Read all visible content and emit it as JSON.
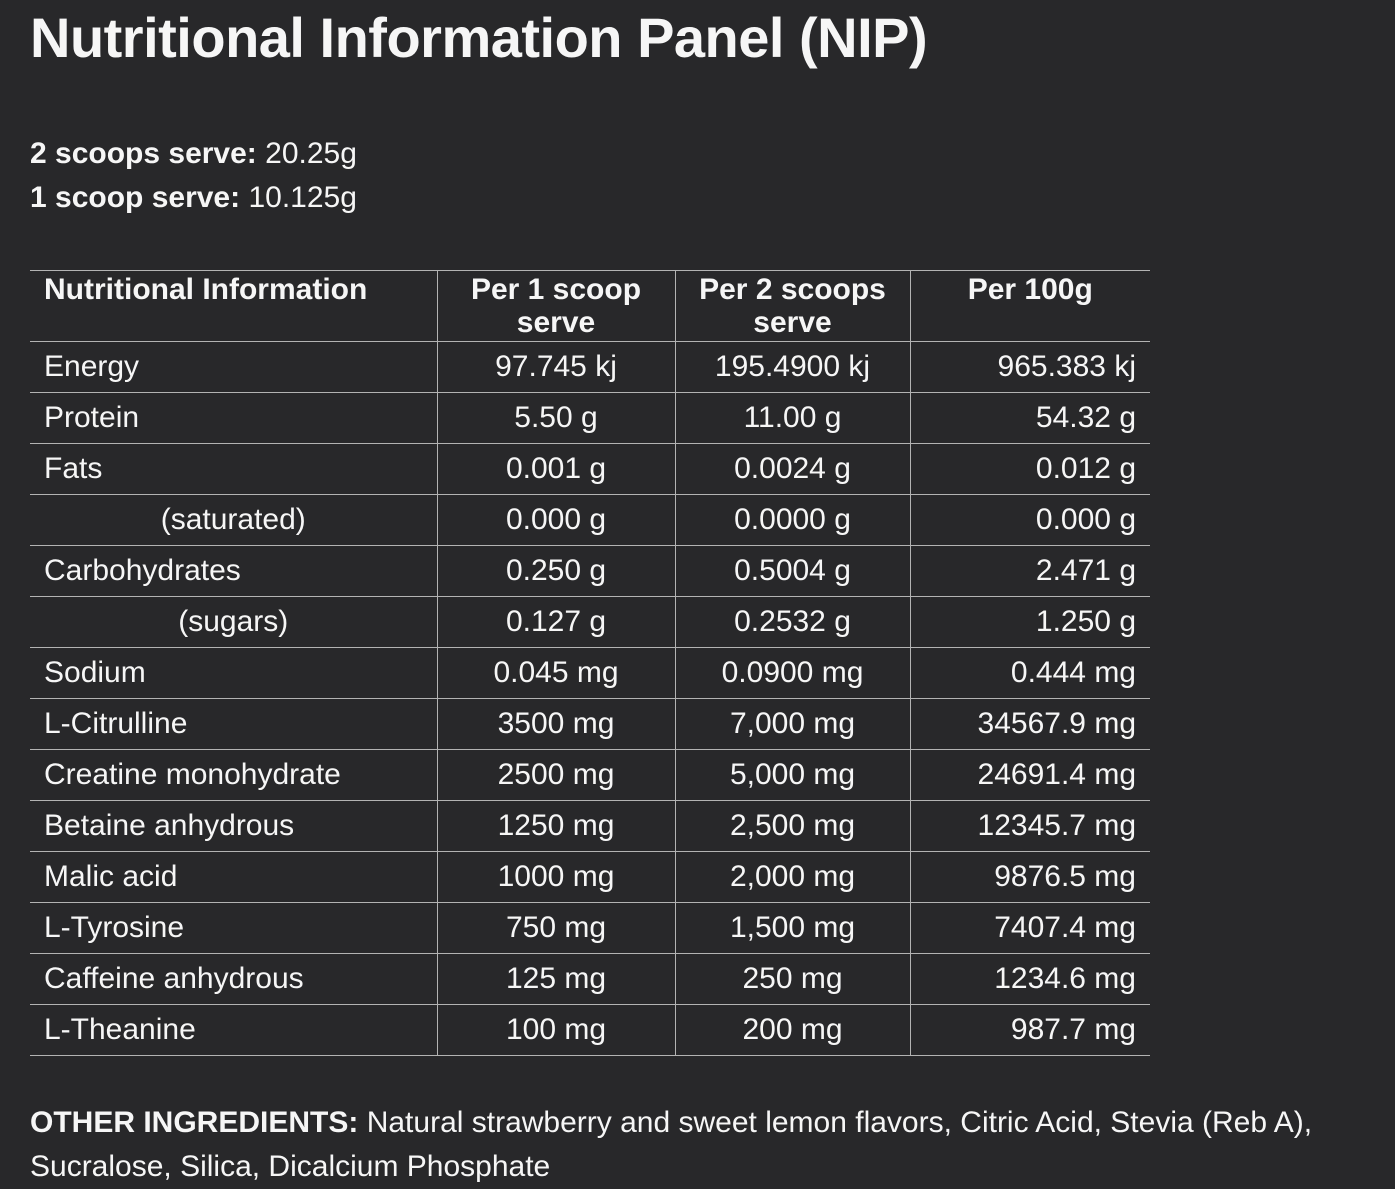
{
  "theme": {
    "background_color": "#28282a",
    "text_color": "#f6f6f6",
    "table_border_color": "#b3b3b3"
  },
  "title": "Nutritional Information Panel (NIP)",
  "serving": [
    {
      "label": "2 scoops serve:",
      "value": "20.25g"
    },
    {
      "label": "1 scoop serve:",
      "value": "10.125g"
    }
  ],
  "table": {
    "headers": [
      "Nutritional Information",
      "Per 1 scoop serve",
      "Per 2 scoops serve",
      "Per 100g"
    ],
    "rows": [
      {
        "name": "Energy",
        "indent": false,
        "per1": "97.745 kj",
        "per2": "195.4900 kj",
        "per100": "965.383 kj"
      },
      {
        "name": "Protein",
        "indent": false,
        "per1": "5.50 g",
        "per2": "11.00 g",
        "per100": "54.32 g"
      },
      {
        "name": "Fats",
        "indent": false,
        "per1": "0.001 g",
        "per2": "0.0024 g",
        "per100": "0.012 g"
      },
      {
        "name": "(saturated)",
        "indent": true,
        "per1": "0.000 g",
        "per2": "0.0000 g",
        "per100": "0.000 g"
      },
      {
        "name": "Carbohydrates",
        "indent": false,
        "per1": "0.250 g",
        "per2": "0.5004 g",
        "per100": "2.471 g"
      },
      {
        "name": "(sugars)",
        "indent": true,
        "per1": "0.127 g",
        "per2": "0.2532 g",
        "per100": "1.250 g"
      },
      {
        "name": "Sodium",
        "indent": false,
        "per1": "0.045 mg",
        "per2": "0.0900 mg",
        "per100": "0.444 mg"
      },
      {
        "name": "L-Citrulline",
        "indent": false,
        "per1": "3500 mg",
        "per2": "7,000 mg",
        "per100": "34567.9 mg"
      },
      {
        "name": "Creatine monohydrate",
        "indent": false,
        "per1": "2500 mg",
        "per2": "5,000 mg",
        "per100": "24691.4 mg"
      },
      {
        "name": "Betaine anhydrous",
        "indent": false,
        "per1": "1250 mg",
        "per2": "2,500 mg",
        "per100": "12345.7 mg"
      },
      {
        "name": "Malic acid",
        "indent": false,
        "per1": "1000 mg",
        "per2": "2,000 mg",
        "per100": "9876.5 mg"
      },
      {
        "name": "L-Tyrosine",
        "indent": false,
        "per1": "750 mg",
        "per2": "1,500 mg",
        "per100": "7407.4 mg"
      },
      {
        "name": "Caffeine anhydrous",
        "indent": false,
        "per1": "125 mg",
        "per2": "250 mg",
        "per100": "1234.6 mg"
      },
      {
        "name": "L-Theanine",
        "indent": false,
        "per1": "100 mg",
        "per2": "200 mg",
        "per100": "987.7 mg"
      }
    ]
  },
  "other_ingredients": {
    "label": "OTHER INGREDIENTS:",
    "text": "Natural strawberry and sweet lemon flavors, Citric Acid, Stevia (Reb A), Sucralose, Silica, Dicalcium Phosphate"
  }
}
